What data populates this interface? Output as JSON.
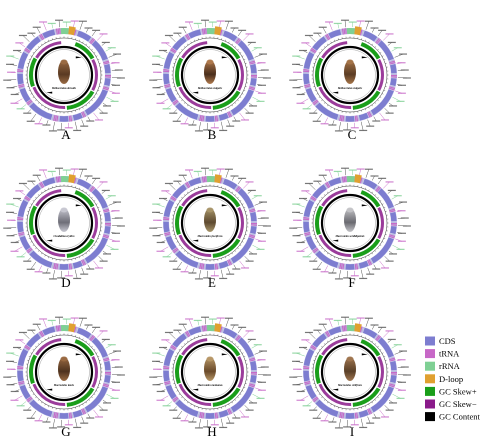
{
  "colors": {
    "cds": "#7d7dd0",
    "trna": "#c768c7",
    "rrna": "#7fd094",
    "dloop": "#e0a030",
    "skew_pos": "#1a9e1a",
    "skew_neg": "#8a1a8a",
    "gc_content": "#000000"
  },
  "panels": [
    {
      "letter": "A",
      "species": "Bolboceratus dorsalis",
      "photo": [
        "#5a3a22",
        "#9a6b44"
      ]
    },
    {
      "letter": "B",
      "species": "Bolboceratus vulgaris",
      "photo": [
        "#4a2e1c",
        "#b07a4c"
      ]
    },
    {
      "letter": "C",
      "species": "Bolboceratus vulgaris",
      "photo": [
        "#5c3d24",
        "#a57448"
      ]
    },
    {
      "letter": "D",
      "species": "Cicadulina erythro",
      "photo": [
        "#6e6e78",
        "#c8c8d2"
      ]
    },
    {
      "letter": "E",
      "species": "Macrosteles fascifrons",
      "photo": [
        "#5e4a30",
        "#a8966a"
      ]
    },
    {
      "letter": "F",
      "species": "Macrosteles sordidipennis",
      "photo": [
        "#6a6a70",
        "#c4c4c8"
      ]
    },
    {
      "letter": "G",
      "species": "Macrosteles laevis",
      "photo": [
        "#4e321e",
        "#9a6a42"
      ]
    },
    {
      "letter": "H",
      "species": "Macrosteles montanus",
      "photo": [
        "#6a4a2a",
        "#b89868"
      ]
    },
    {
      "letter": "I",
      "species": "Macrosteles striifrons",
      "photo": [
        "#5a4028",
        "#a07650"
      ]
    }
  ],
  "legend": [
    {
      "label": "CDS",
      "color": "#7d7dd0"
    },
    {
      "label": "tRNA",
      "color": "#c768c7"
    },
    {
      "label": "rRNA",
      "color": "#7fd094"
    },
    {
      "label": "D-loop",
      "color": "#e0a030"
    },
    {
      "label": "GC Skew+",
      "color": "#1a9e1a"
    },
    {
      "label": "GC Skew−",
      "color": "#8a1a8a"
    },
    {
      "label": "GC Content",
      "color": "#000000"
    }
  ]
}
